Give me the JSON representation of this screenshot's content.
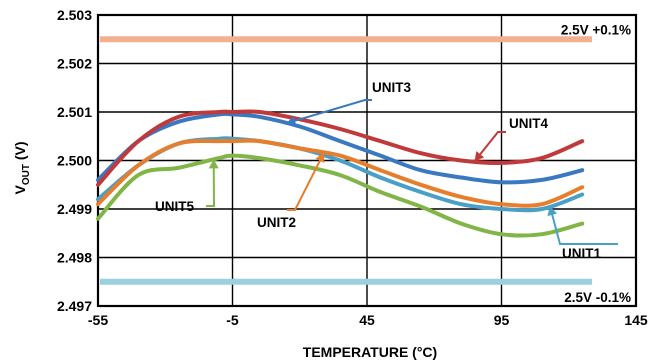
{
  "chart_data": {
    "type": "line",
    "title": "",
    "xlabel": "TEMPERATURE (°C)",
    "ylabel_main": "V",
    "ylabel_sub": "OUT",
    "ylabel_unit": " (V)",
    "xlim": [
      -55,
      145
    ],
    "ylim": [
      2.497,
      2.503
    ],
    "x_ticks": [
      -55,
      -5,
      45,
      95,
      145
    ],
    "x_tick_labels": [
      "-55",
      "-5",
      "45",
      "95",
      "145"
    ],
    "y_ticks": [
      2.497,
      2.498,
      2.499,
      2.5,
      2.501,
      2.502,
      2.503
    ],
    "y_tick_labels": [
      "2.497",
      "2.498",
      "2.499",
      "2.500",
      "2.501",
      "2.502",
      "2.503"
    ],
    "grid": true,
    "x": [
      -55,
      -40,
      -25,
      -10,
      -5,
      5,
      20,
      35,
      50,
      65,
      80,
      95,
      110,
      125
    ],
    "series": [
      {
        "name": "UNIT1",
        "color": "#4a9fc7",
        "values": [
          2.4992,
          2.4999,
          2.50035,
          2.50045,
          2.50045,
          2.5004,
          2.50025,
          2.5,
          2.49965,
          2.49935,
          2.4991,
          2.499,
          2.499,
          2.4993
        ]
      },
      {
        "name": "UNIT2",
        "color": "#e67e2e",
        "values": [
          2.4991,
          2.4999,
          2.50035,
          2.5004,
          2.5004,
          2.5004,
          2.50025,
          2.5001,
          2.4998,
          2.4995,
          2.49925,
          2.4991,
          2.4991,
          2.49945
        ]
      },
      {
        "name": "UNIT3",
        "color": "#3a78c2",
        "values": [
          2.4996,
          2.5004,
          2.5008,
          2.50095,
          2.50095,
          2.5009,
          2.5007,
          2.5004,
          2.5001,
          2.4998,
          2.49965,
          2.49955,
          2.4996,
          2.4998
        ]
      },
      {
        "name": "UNIT4",
        "color": "#c0393b",
        "values": [
          2.4995,
          2.5004,
          2.5009,
          2.501,
          2.501,
          2.501,
          2.50085,
          2.50065,
          2.5004,
          2.50015,
          2.5,
          2.49995,
          2.50005,
          2.5004
        ]
      },
      {
        "name": "UNIT5",
        "color": "#82b547",
        "values": [
          2.4988,
          2.4997,
          2.49985,
          2.50005,
          2.5001,
          2.50005,
          2.4999,
          2.4997,
          2.49935,
          2.49905,
          2.4987,
          2.49848,
          2.49848,
          2.4987
        ]
      }
    ],
    "reference_lines": [
      {
        "label": "2.5V +0.1%",
        "value": 2.5025,
        "color": "#f2b08d"
      },
      {
        "label": "2.5V -0.1%",
        "value": 2.4975,
        "color": "#9ccfe0"
      }
    ]
  }
}
